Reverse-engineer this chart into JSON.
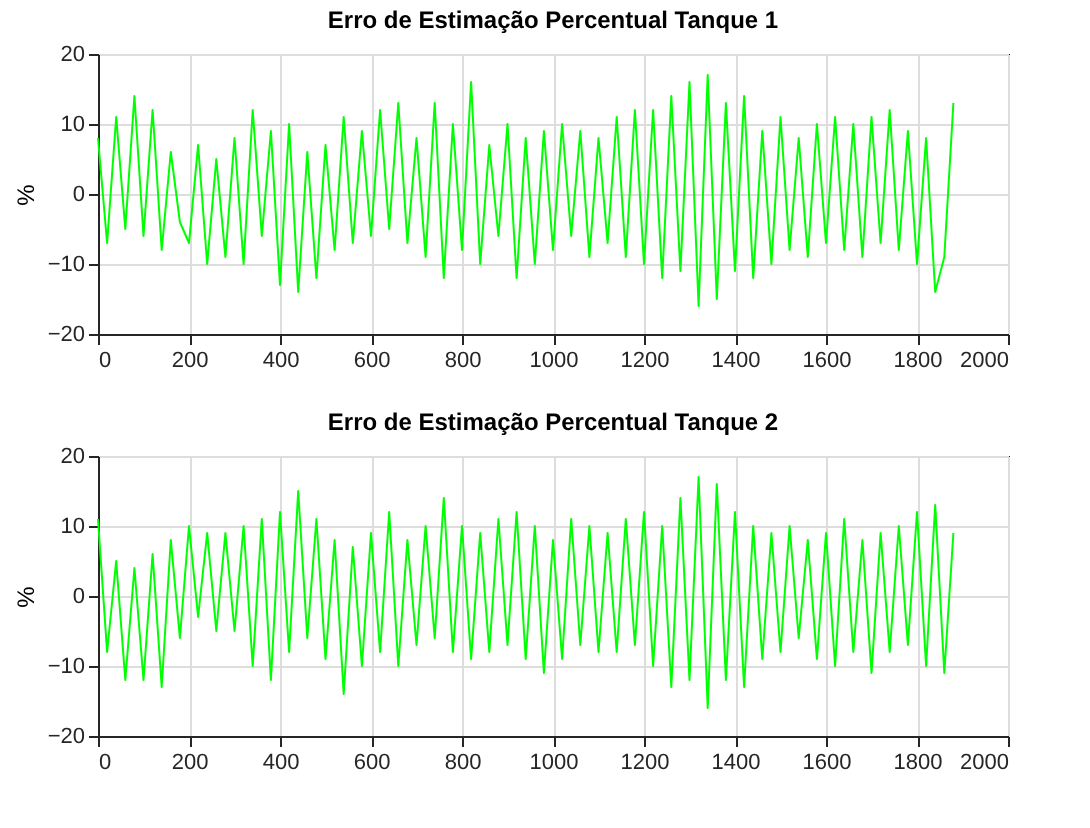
{
  "chart_data": [
    {
      "type": "line",
      "title": "Erro de Estimação Percentual Tanque 1",
      "ylabel": "%",
      "grid": true,
      "xlim": [
        0,
        2000
      ],
      "xticks": [
        0,
        200,
        400,
        600,
        800,
        1000,
        1200,
        1400,
        1600,
        1800,
        2000
      ],
      "ylim": [
        -20,
        20
      ],
      "yticks": [
        -20,
        -10,
        0,
        10,
        20
      ],
      "x": [
        0,
        20,
        40,
        60,
        80,
        100,
        120,
        140,
        160,
        180,
        200,
        220,
        240,
        260,
        280,
        300,
        320,
        340,
        360,
        380,
        400,
        420,
        440,
        460,
        480,
        500,
        520,
        540,
        560,
        580,
        600,
        620,
        640,
        660,
        680,
        700,
        720,
        740,
        760,
        780,
        800,
        820,
        840,
        860,
        880,
        900,
        920,
        940,
        960,
        980,
        1000,
        1020,
        1040,
        1060,
        1080,
        1100,
        1120,
        1140,
        1160,
        1180,
        1200,
        1220,
        1240,
        1260,
        1280,
        1300,
        1320,
        1340,
        1360,
        1380,
        1400,
        1420,
        1440,
        1460,
        1480,
        1500,
        1520,
        1540,
        1560,
        1580,
        1600,
        1620,
        1640,
        1660,
        1680,
        1700,
        1720,
        1740,
        1760,
        1780,
        1800,
        1820,
        1840,
        1860,
        1880
      ],
      "series": [
        {
          "color": "#00ff00",
          "values": [
            8,
            -7,
            11,
            -5,
            14,
            -6,
            12,
            -8,
            6,
            -4,
            -7,
            7,
            -10,
            5,
            -9,
            8,
            -10,
            12,
            -6,
            9,
            -13,
            10,
            -14,
            6,
            -12,
            7,
            -8,
            11,
            -7,
            9,
            -6,
            12,
            -5,
            13,
            -7,
            8,
            -9,
            13,
            -12,
            10,
            -8,
            16,
            -10,
            7,
            -6,
            10,
            -12,
            8,
            -10,
            9,
            -8,
            10,
            -6,
            9,
            -9,
            8,
            -7,
            11,
            -9,
            12,
            -10,
            12,
            -12,
            14,
            -11,
            16,
            -16,
            17,
            -15,
            13,
            -11,
            14,
            -12,
            9,
            -10,
            11,
            -8,
            8,
            -9,
            10,
            -7,
            11,
            -8,
            10,
            -9,
            11,
            -7,
            12,
            -8,
            9,
            -10,
            8,
            -14,
            -9,
            13
          ]
        }
      ]
    },
    {
      "type": "line",
      "title": "Erro de Estimação Percentual Tanque 2",
      "ylabel": "%",
      "grid": true,
      "xlim": [
        0,
        2000
      ],
      "xticks": [
        0,
        200,
        400,
        600,
        800,
        1000,
        1200,
        1400,
        1600,
        1800,
        2000
      ],
      "ylim": [
        -20,
        20
      ],
      "yticks": [
        -20,
        -10,
        0,
        10,
        20
      ],
      "x": [
        0,
        20,
        40,
        60,
        80,
        100,
        120,
        140,
        160,
        180,
        200,
        220,
        240,
        260,
        280,
        300,
        320,
        340,
        360,
        380,
        400,
        420,
        440,
        460,
        480,
        500,
        520,
        540,
        560,
        580,
        600,
        620,
        640,
        660,
        680,
        700,
        720,
        740,
        760,
        780,
        800,
        820,
        840,
        860,
        880,
        900,
        920,
        940,
        960,
        980,
        1000,
        1020,
        1040,
        1060,
        1080,
        1100,
        1120,
        1140,
        1160,
        1180,
        1200,
        1220,
        1240,
        1260,
        1280,
        1300,
        1320,
        1340,
        1360,
        1380,
        1400,
        1420,
        1440,
        1460,
        1480,
        1500,
        1520,
        1540,
        1560,
        1580,
        1600,
        1620,
        1640,
        1660,
        1680,
        1700,
        1720,
        1740,
        1760,
        1780,
        1800,
        1820,
        1840,
        1860,
        1880
      ],
      "series": [
        {
          "color": "#00ff00",
          "values": [
            11,
            -8,
            5,
            -12,
            4,
            -12,
            6,
            -13,
            8,
            -6,
            10,
            -3,
            9,
            -5,
            9,
            -5,
            10,
            -10,
            11,
            -12,
            12,
            -8,
            15,
            -6,
            11,
            -9,
            8,
            -14,
            7,
            -10,
            9,
            -8,
            12,
            -10,
            8,
            -7,
            10,
            -6,
            14,
            -8,
            10,
            -9,
            9,
            -8,
            11,
            -7,
            12,
            -9,
            10,
            -11,
            8,
            -9,
            11,
            -7,
            10,
            -8,
            9,
            -8,
            11,
            -7,
            12,
            -10,
            10,
            -13,
            14,
            -12,
            17,
            -16,
            16,
            -12,
            12,
            -13,
            10,
            -9,
            9,
            -8,
            10,
            -6,
            8,
            -9,
            9,
            -10,
            11,
            -8,
            8,
            -11,
            9,
            -8,
            10,
            -7,
            12,
            -10,
            13,
            -11,
            9
          ]
        }
      ]
    }
  ]
}
